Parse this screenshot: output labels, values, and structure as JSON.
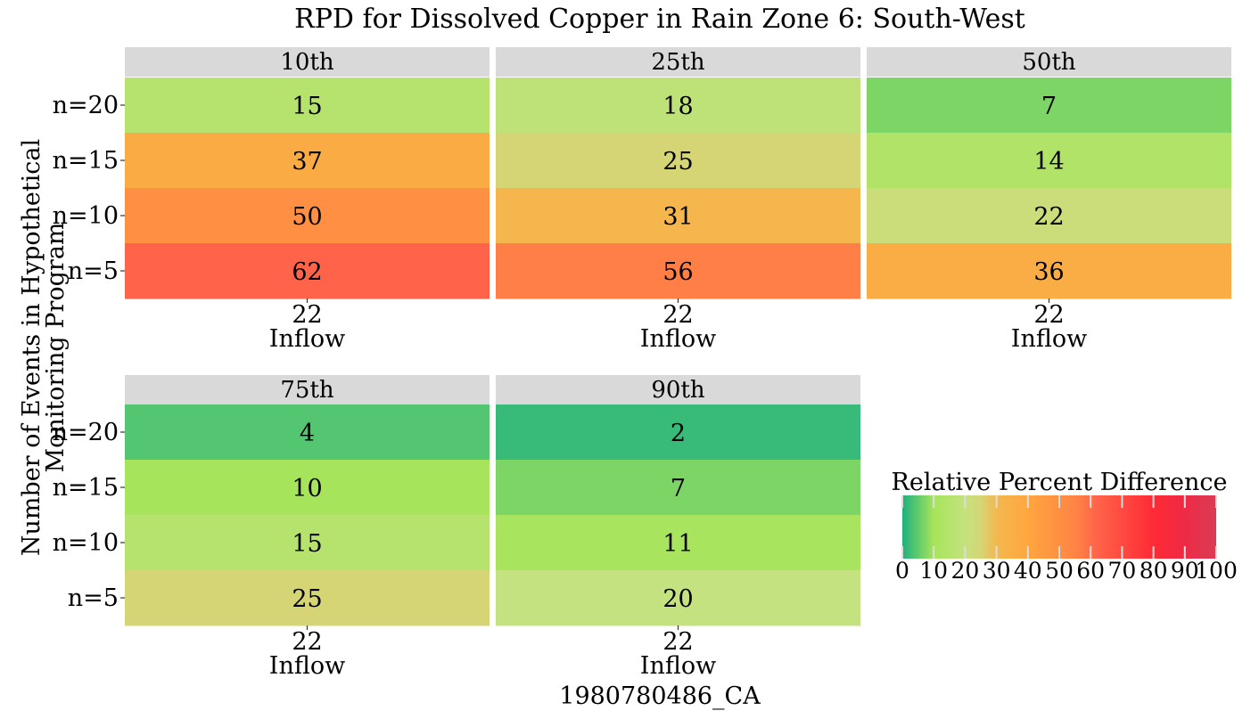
{
  "chart_data": {
    "type": "heatmap",
    "title": "RPD for Dissolved Copper in Rain Zone 6: South-West",
    "xlabel": "1980780486_CA",
    "ylabel_lines": [
      "Number of Events in Hypothetical",
      "Monitoring Program"
    ],
    "y_categories": [
      "n=20",
      "n=15",
      "n=10",
      "n=5"
    ],
    "x_categories": [
      "22"
    ],
    "x_sublabel": "Inflow",
    "facets": [
      {
        "label": "10th",
        "values": [
          15,
          37,
          50,
          62
        ]
      },
      {
        "label": "25th",
        "values": [
          18,
          25,
          31,
          56
        ]
      },
      {
        "label": "50th",
        "values": [
          7,
          14,
          22,
          36
        ]
      },
      {
        "label": "75th",
        "values": [
          4,
          10,
          15,
          25
        ]
      },
      {
        "label": "90th",
        "values": [
          2,
          7,
          11,
          20
        ]
      }
    ],
    "legend": {
      "title": "Relative Percent Difference",
      "range": [
        0,
        100
      ],
      "ticks": [
        0,
        10,
        20,
        30,
        40,
        50,
        60,
        70,
        80,
        90,
        100
      ],
      "color_stops": [
        {
          "value": 0,
          "color": "#1db17f"
        },
        {
          "value": 10,
          "color": "#a6e45b"
        },
        {
          "value": 20,
          "color": "#c4e27f"
        },
        {
          "value": 25,
          "color": "#d6d576"
        },
        {
          "value": 30,
          "color": "#f3b84f"
        },
        {
          "value": 40,
          "color": "#ffa63f"
        },
        {
          "value": 55,
          "color": "#ff8445"
        },
        {
          "value": 62,
          "color": "#ff644a"
        },
        {
          "value": 80,
          "color": "#ff2a35"
        },
        {
          "value": 90,
          "color": "#ee2a45"
        },
        {
          "value": 100,
          "color": "#d93d55"
        }
      ]
    }
  }
}
